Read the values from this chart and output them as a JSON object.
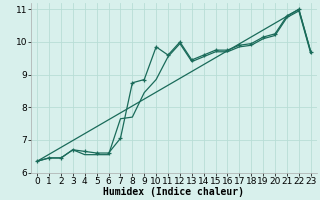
{
  "xlabel": "Humidex (Indice chaleur)",
  "bg_color": "#d8f0ec",
  "grid_color": "#b8ddd6",
  "line_color": "#1a6b5a",
  "xlim": [
    -0.5,
    23.5
  ],
  "ylim": [
    6,
    11.2
  ],
  "xticks": [
    0,
    1,
    2,
    3,
    4,
    5,
    6,
    7,
    8,
    9,
    10,
    11,
    12,
    13,
    14,
    15,
    16,
    17,
    18,
    19,
    20,
    21,
    22,
    23
  ],
  "yticks": [
    6,
    7,
    8,
    9,
    10,
    11
  ],
  "curve1_x": [
    0,
    1,
    2,
    3,
    4,
    5,
    6,
    7,
    8,
    9,
    10,
    11,
    12,
    13,
    14,
    15,
    16,
    17,
    18,
    19,
    20,
    21,
    22,
    23
  ],
  "curve1_y": [
    6.35,
    6.45,
    6.45,
    6.7,
    6.65,
    6.6,
    6.6,
    7.05,
    8.75,
    8.85,
    9.85,
    9.6,
    10.0,
    9.45,
    9.6,
    9.75,
    9.75,
    9.9,
    9.95,
    10.15,
    10.25,
    10.8,
    11.0,
    9.7
  ],
  "curve2_x": [
    0,
    1,
    2,
    3,
    4,
    5,
    6,
    7,
    8,
    9,
    10,
    11,
    12,
    13,
    14,
    15,
    16,
    17,
    18,
    19,
    20,
    21,
    22,
    23
  ],
  "curve2_y": [
    6.35,
    6.45,
    6.45,
    6.7,
    6.55,
    6.55,
    6.55,
    7.65,
    7.7,
    8.45,
    8.85,
    9.55,
    9.95,
    9.4,
    9.55,
    9.7,
    9.7,
    9.85,
    9.9,
    10.1,
    10.2,
    10.75,
    10.95,
    9.65
  ],
  "line3_x": [
    0,
    22,
    23
  ],
  "line3_y": [
    6.35,
    11.0,
    9.7
  ],
  "fontsize_xlabel": 7,
  "fontsize_ticks": 6.5
}
